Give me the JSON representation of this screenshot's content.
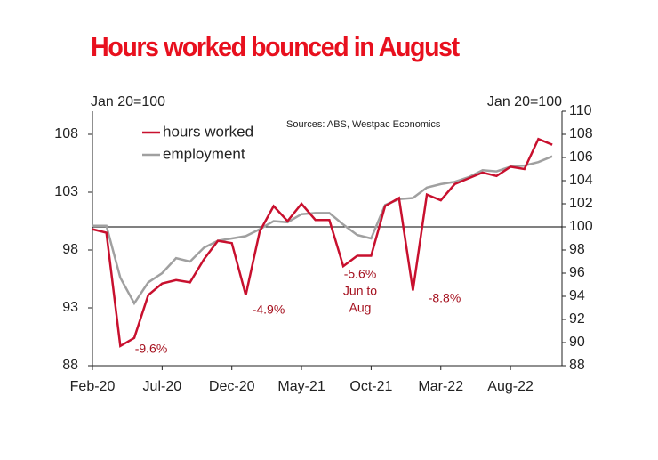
{
  "chart_data": {
    "type": "line",
    "title": "Hours worked bounced in August",
    "y_label": "Jan 20=100",
    "y2_label": "Jan 20=100",
    "source": "Sources: ABS, Westpac Economics",
    "categories": [
      "Feb-20",
      null,
      null,
      null,
      null,
      "Jul-20",
      null,
      null,
      null,
      null,
      "Dec-20",
      null,
      null,
      null,
      null,
      "May-21",
      null,
      null,
      null,
      null,
      "Oct-21",
      null,
      null,
      null,
      null,
      "Mar-22",
      null,
      null,
      null,
      null,
      "Aug-22",
      null,
      null,
      null
    ],
    "series": [
      {
        "name": "hours worked",
        "color": "#c8102e",
        "values": [
          99.8,
          99.5,
          89.7,
          90.4,
          94.1,
          95.1,
          95.4,
          95.2,
          97.2,
          98.8,
          98.6,
          94.1,
          99.6,
          101.8,
          100.5,
          102.0,
          100.6,
          100.6,
          96.6,
          97.5,
          97.5,
          101.8,
          102.5,
          94.5,
          102.8,
          102.3,
          103.7,
          104.2,
          104.7,
          104.4,
          105.2,
          105.0,
          107.6,
          107.1
        ]
      },
      {
        "name": "employment",
        "color": "#a0a0a0",
        "values": [
          100.1,
          100.1,
          95.6,
          93.4,
          95.2,
          96.0,
          97.3,
          97.0,
          98.2,
          98.8,
          99.0,
          99.2,
          99.8,
          100.5,
          100.4,
          101.1,
          101.2,
          101.2,
          100.2,
          99.3,
          99.0,
          101.9,
          102.4,
          102.5,
          103.4,
          103.7,
          103.9,
          104.3,
          104.9,
          104.8,
          105.2,
          105.3,
          105.6,
          106.1
        ]
      }
    ],
    "ylim": [
      88,
      110
    ],
    "yticks": [
      88,
      93,
      98,
      103,
      108
    ],
    "y2lim": [
      88,
      110
    ],
    "y2ticks": [
      88,
      90,
      92,
      94,
      96,
      98,
      100,
      102,
      104,
      106,
      108,
      110
    ],
    "reference_line": 100,
    "legend": "upper left",
    "annotations": [
      {
        "lines": [
          "-9.6%"
        ]
      },
      {
        "lines": [
          "-4.9%"
        ]
      },
      {
        "lines": [
          "-5.6%",
          "Jun to",
          "Aug"
        ]
      },
      {
        "lines": [
          "-8.8%"
        ]
      }
    ]
  }
}
